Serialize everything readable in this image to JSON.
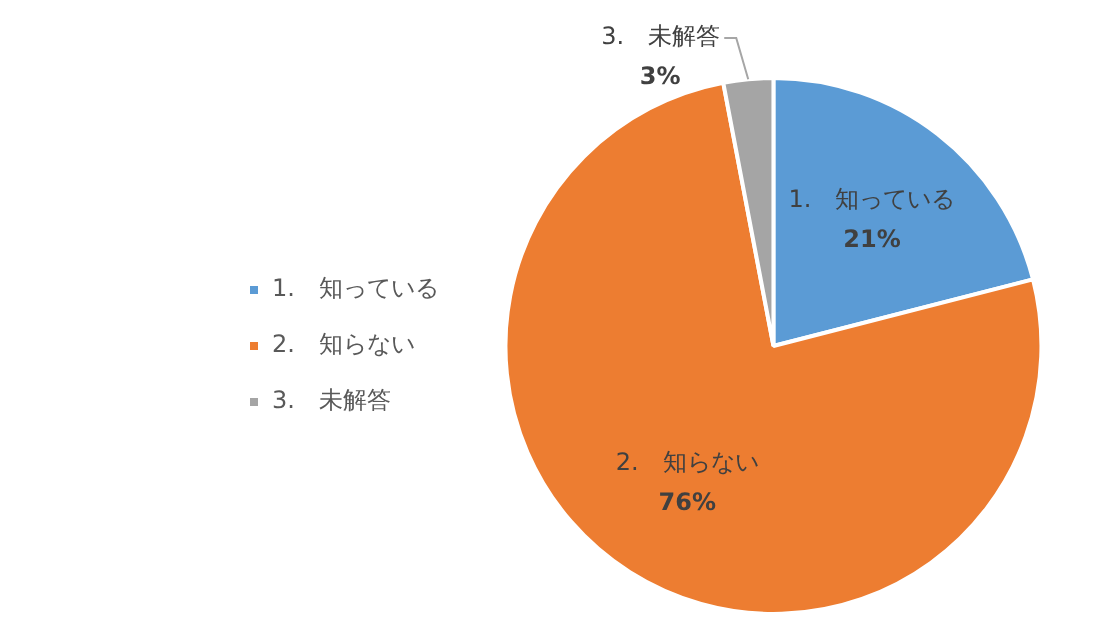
{
  "chart_data": {
    "type": "pie",
    "categories": [
      "1.　知っている",
      "2.　知らない",
      "3.　未解答"
    ],
    "values": [
      21,
      76,
      3
    ],
    "colors": [
      "#5b9bd5",
      "#ed7d31",
      "#a5a5a5"
    ],
    "value_labels": [
      "21%",
      "76%",
      "3%"
    ],
    "legend": "left"
  }
}
